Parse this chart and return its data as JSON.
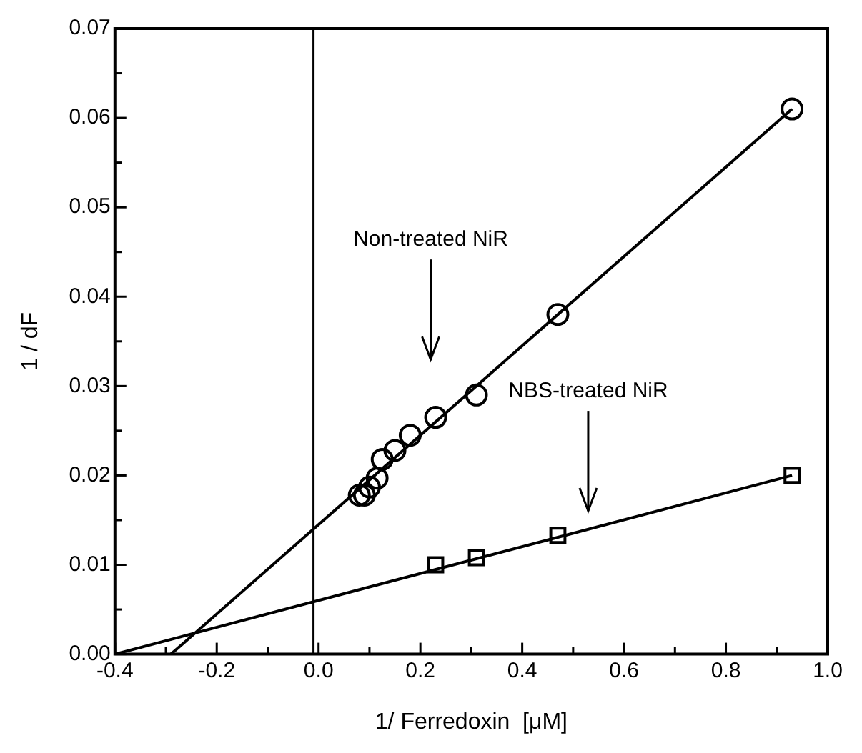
{
  "chart_data": {
    "type": "scatter",
    "xlabel": "1/ Ferredoxin  [μM]",
    "ylabel": "1 / dF",
    "xlim": [
      -0.4,
      1.0
    ],
    "ylim": [
      0,
      0.07
    ],
    "xticks": [
      {
        "value": -0.4,
        "label": "-0.4"
      },
      {
        "value": -0.3,
        "label": null
      },
      {
        "value": -0.2,
        "label": "-0.2"
      },
      {
        "value": -0.1,
        "label": null
      },
      {
        "value": 0,
        "label": "0.0"
      },
      {
        "value": 0.1,
        "label": null
      },
      {
        "value": 0.2,
        "label": "0.2"
      },
      {
        "value": 0.3,
        "label": null
      },
      {
        "value": 0.4,
        "label": "0.4"
      },
      {
        "value": 0.5,
        "label": null
      },
      {
        "value": 0.6,
        "label": "0.6"
      },
      {
        "value": 0.7,
        "label": null
      },
      {
        "value": 0.8,
        "label": "0.8"
      },
      {
        "value": 0.9,
        "label": null
      },
      {
        "value": 1.0,
        "label": "1.0"
      }
    ],
    "yticks": [
      {
        "value": 0,
        "label": "0.00"
      },
      {
        "value": 0.005,
        "label": null
      },
      {
        "value": 0.01,
        "label": "0.01"
      },
      {
        "value": 0.015,
        "label": null
      },
      {
        "value": 0.02,
        "label": "0.02"
      },
      {
        "value": 0.025,
        "label": null
      },
      {
        "value": 0.03,
        "label": "0.03"
      },
      {
        "value": 0.035,
        "label": null
      },
      {
        "value": 0.04,
        "label": "0.04"
      },
      {
        "value": 0.045,
        "label": null
      },
      {
        "value": 0.05,
        "label": "0.05"
      },
      {
        "value": 0.055,
        "label": null
      },
      {
        "value": 0.06,
        "label": "0.06"
      },
      {
        "value": 0.065,
        "label": null
      },
      {
        "value": 0.07,
        "label": "0.07"
      }
    ],
    "grid": false,
    "legend": false,
    "ref_lines": [
      {
        "axis": "x",
        "value": -0.01,
        "color": "#000000"
      }
    ],
    "annotations": [
      "Non-treated NiR",
      "NBS-treated NiR"
    ],
    "series": [
      {
        "marker": "circle",
        "color": "#000000",
        "x": [
          0.93,
          0.47,
          0.31,
          0.23,
          0.18,
          0.15,
          0.125,
          0.115,
          0.1,
          0.09,
          0.08
        ],
        "values": [
          0.061,
          0.038,
          0.029,
          0.0265,
          0.0245,
          0.0228,
          0.0218,
          0.0197,
          0.0187,
          0.0178,
          0.0178
        ]
      },
      {
        "marker": "square",
        "color": "#000000",
        "x": [
          0.23,
          0.31,
          0.47,
          0.93
        ],
        "values": [
          0.01,
          0.0108,
          0.0133,
          0.02
        ]
      },
      {
        "type": "line",
        "marker": "none",
        "line_style": "solid",
        "color": "#000000",
        "x": [
          -0.29,
          0.93
        ],
        "values": [
          0,
          0.061
        ]
      },
      {
        "type": "line",
        "marker": "none",
        "line_style": "solid",
        "color": "#000000",
        "x": [
          -0.4,
          0.93
        ],
        "values": [
          0,
          0.02
        ]
      }
    ]
  }
}
